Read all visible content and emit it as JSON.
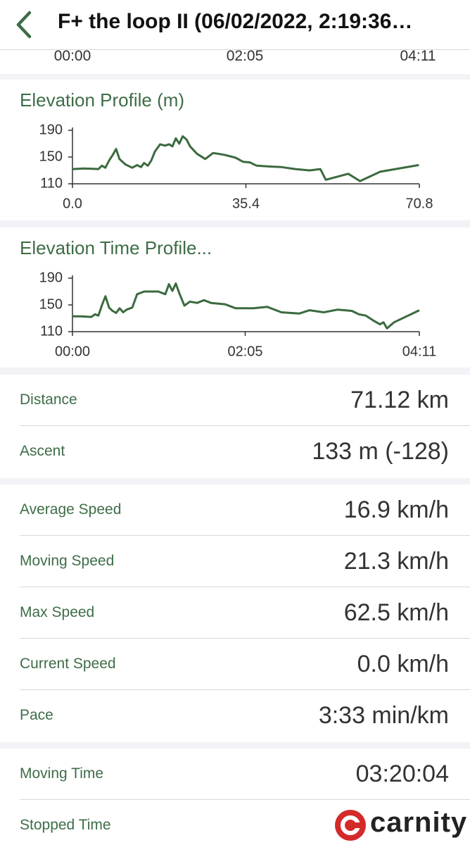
{
  "header": {
    "title": "F+ the loop II (06/02/2022, 2:19:36…"
  },
  "top_axis": {
    "ticks": [
      "00:00",
      "02:05",
      "04:11"
    ]
  },
  "chart_data": [
    {
      "type": "line",
      "title": "Elevation Profile (m)",
      "color": "#3b6a3f",
      "x": [
        0,
        2.4,
        5.3,
        6.0,
        6.7,
        7.5,
        8.2,
        8.9,
        9.6,
        10.8,
        12.2,
        13.2,
        14.0,
        14.6,
        15.4,
        16.1,
        16.8,
        17.9,
        18.9,
        19.7,
        20.4,
        21.1,
        21.8,
        22.5,
        23.3,
        24.0,
        25.4,
        27.1,
        28.7,
        29.7,
        31.2,
        33.3,
        34.8,
        36.2,
        37.6,
        39.8,
        42.7,
        45.5,
        48.4,
        50.6,
        51.7,
        56.3,
        58.7,
        62.8,
        70.7
      ],
      "values": [
        132,
        133,
        132,
        137,
        134,
        145,
        153,
        162,
        147,
        139,
        134,
        138,
        135,
        141,
        137,
        145,
        158,
        169,
        167,
        169,
        166,
        178,
        170,
        181,
        176,
        166,
        155,
        147,
        156,
        155,
        153,
        149,
        143,
        142,
        137,
        136,
        135,
        132,
        130,
        132,
        116,
        125,
        114,
        128,
        138
      ],
      "xlim": [
        0,
        70.8
      ],
      "ylim": [
        110,
        190
      ],
      "xticks": [
        {
          "value": 0,
          "label": "0.0"
        },
        35.4,
        70.8
      ],
      "yticks": [
        110,
        150,
        190
      ]
    },
    {
      "type": "line",
      "title": "Elevation Time Profile...",
      "color": "#3b6a3f",
      "x": [
        0,
        6.1,
        13.7,
        16.3,
        18.8,
        21.4,
        23.9,
        26.5,
        29.0,
        31.6,
        34.1,
        36.7,
        39.2,
        43.3,
        46.8,
        51.9,
        62.1,
        67.2,
        69.8,
        72.3,
        74.8,
        77.4,
        81.0,
        85.0,
        90.1,
        95.2,
        100.3,
        110.5,
        118.1,
        130.9,
        141.0,
        151.2,
        164.0,
        171.6,
        181.8,
        192.0,
        202.2,
        207.2,
        212.3,
        217.4,
        222.5,
        225.1,
        227.6,
        232.7,
        251.0
      ],
      "values": [
        133,
        133,
        132,
        136,
        134,
        150,
        163,
        146,
        141,
        138,
        145,
        139,
        143,
        146,
        166,
        170,
        170,
        166,
        181,
        171,
        182,
        167,
        149,
        155,
        153,
        157,
        153,
        151,
        145,
        145,
        147,
        139,
        137,
        142,
        139,
        143,
        141,
        136,
        134,
        127,
        121,
        124,
        115,
        124,
        142
      ],
      "xlim": [
        0,
        251
      ],
      "ylim": [
        110,
        190
      ],
      "xticks": [
        {
          "value": 0,
          "label": "00:00"
        },
        {
          "value": 125,
          "label": "02:05"
        },
        {
          "value": 251,
          "label": "04:11"
        }
      ],
      "yticks": [
        110,
        150,
        190
      ]
    }
  ],
  "sections": [
    [
      {
        "label": "Distance",
        "value": "71.12 km"
      },
      {
        "label": "Ascent",
        "value": "133 m (-128)"
      }
    ],
    [
      {
        "label": "Average Speed",
        "value": "16.9 km/h"
      },
      {
        "label": "Moving Speed",
        "value": "21.3 km/h"
      },
      {
        "label": "Max Speed",
        "value": "62.5 km/h"
      },
      {
        "label": "Current Speed",
        "value": "0.0 km/h"
      },
      {
        "label": "Pace",
        "value": "3:33 min/km"
      }
    ],
    [
      {
        "label": "Moving Time",
        "value": "03:20:04"
      },
      {
        "label": "Stopped Time",
        "value": ""
      }
    ]
  ],
  "watermark": "carnity"
}
